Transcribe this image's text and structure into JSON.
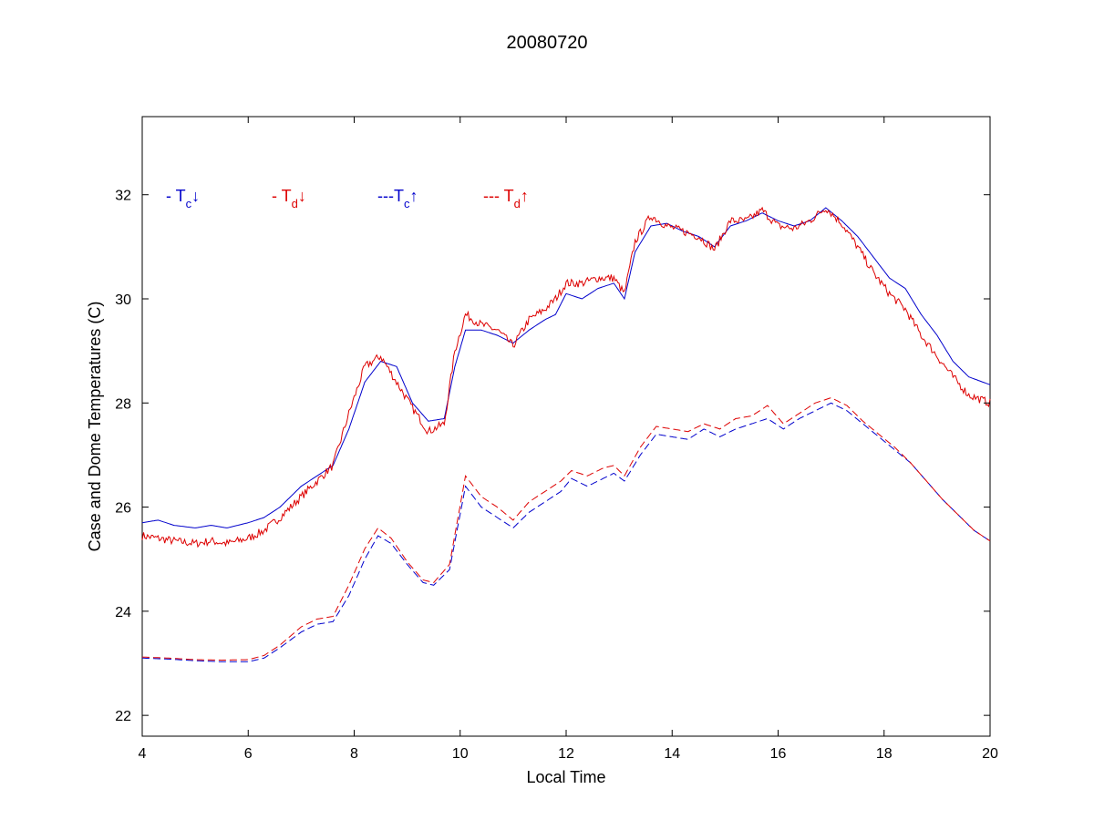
{
  "chart_data": {
    "type": "line",
    "title": "20080720",
    "xlabel": "Local Time",
    "ylabel": "Case and Dome Temperatures (C)",
    "xlim": [
      4,
      20
    ],
    "ylim": [
      21.6,
      33.5
    ],
    "xticks": [
      4,
      6,
      8,
      10,
      12,
      14,
      16,
      18,
      20
    ],
    "yticks": [
      22,
      24,
      26,
      28,
      30,
      32
    ],
    "grid": false,
    "legend": {
      "placement": "top-left",
      "entries": [
        {
          "prefix": "- T",
          "sub": "c",
          "arrow": "↓",
          "color": "#0000cc"
        },
        {
          "prefix": "- T",
          "sub": "d",
          "arrow": "↓",
          "color": "#dd0000"
        },
        {
          "prefix": "---T",
          "sub": "c",
          "arrow": "↑",
          "color": "#0000cc"
        },
        {
          "prefix": "--- T",
          "sub": "d",
          "arrow": "↑",
          "color": "#dd0000"
        }
      ]
    },
    "series": [
      {
        "color": "#0000cc",
        "style": "solid",
        "noise": 0,
        "points": [
          [
            4,
            25.7
          ],
          [
            4.3,
            25.75
          ],
          [
            4.6,
            25.65
          ],
          [
            5,
            25.6
          ],
          [
            5.3,
            25.65
          ],
          [
            5.6,
            25.6
          ],
          [
            6,
            25.7
          ],
          [
            6.3,
            25.8
          ],
          [
            6.6,
            26.0
          ],
          [
            7.0,
            26.4
          ],
          [
            7.3,
            26.6
          ],
          [
            7.6,
            26.8
          ],
          [
            7.9,
            27.5
          ],
          [
            8.2,
            28.4
          ],
          [
            8.5,
            28.8
          ],
          [
            8.8,
            28.7
          ],
          [
            9.1,
            28.0
          ],
          [
            9.4,
            27.65
          ],
          [
            9.7,
            27.7
          ],
          [
            9.9,
            28.7
          ],
          [
            10.1,
            29.4
          ],
          [
            10.4,
            29.4
          ],
          [
            10.7,
            29.3
          ],
          [
            11.0,
            29.15
          ],
          [
            11.3,
            29.4
          ],
          [
            11.6,
            29.6
          ],
          [
            11.8,
            29.7
          ],
          [
            12.0,
            30.1
          ],
          [
            12.3,
            30.0
          ],
          [
            12.6,
            30.2
          ],
          [
            12.9,
            30.3
          ],
          [
            13.1,
            30.0
          ],
          [
            13.3,
            30.9
          ],
          [
            13.6,
            31.4
          ],
          [
            13.9,
            31.45
          ],
          [
            14.2,
            31.3
          ],
          [
            14.5,
            31.2
          ],
          [
            14.8,
            31.0
          ],
          [
            15.1,
            31.4
          ],
          [
            15.4,
            31.5
          ],
          [
            15.7,
            31.65
          ],
          [
            16.0,
            31.5
          ],
          [
            16.3,
            31.4
          ],
          [
            16.6,
            31.5
          ],
          [
            16.9,
            31.75
          ],
          [
            17.2,
            31.5
          ],
          [
            17.5,
            31.2
          ],
          [
            17.8,
            30.8
          ],
          [
            18.1,
            30.4
          ],
          [
            18.4,
            30.2
          ],
          [
            18.7,
            29.7
          ],
          [
            19.0,
            29.3
          ],
          [
            19.3,
            28.8
          ],
          [
            19.6,
            28.5
          ],
          [
            20.0,
            28.35
          ]
        ]
      },
      {
        "color": "#dd0000",
        "style": "solid",
        "noise": 0.08,
        "points": [
          [
            4,
            25.45
          ],
          [
            4.3,
            25.4
          ],
          [
            4.6,
            25.35
          ],
          [
            5,
            25.3
          ],
          [
            5.3,
            25.35
          ],
          [
            5.6,
            25.3
          ],
          [
            6,
            25.4
          ],
          [
            6.3,
            25.55
          ],
          [
            6.6,
            25.8
          ],
          [
            7.0,
            26.2
          ],
          [
            7.3,
            26.5
          ],
          [
            7.6,
            26.8
          ],
          [
            7.9,
            27.8
          ],
          [
            8.2,
            28.7
          ],
          [
            8.5,
            28.9
          ],
          [
            8.8,
            28.4
          ],
          [
            9.1,
            27.9
          ],
          [
            9.4,
            27.45
          ],
          [
            9.7,
            27.6
          ],
          [
            9.9,
            29.0
          ],
          [
            10.1,
            29.7
          ],
          [
            10.4,
            29.5
          ],
          [
            10.7,
            29.4
          ],
          [
            11.0,
            29.1
          ],
          [
            11.3,
            29.6
          ],
          [
            11.6,
            29.8
          ],
          [
            11.8,
            30.0
          ],
          [
            12.0,
            30.3
          ],
          [
            12.3,
            30.3
          ],
          [
            12.6,
            30.4
          ],
          [
            12.9,
            30.4
          ],
          [
            13.1,
            30.1
          ],
          [
            13.3,
            31.1
          ],
          [
            13.6,
            31.6
          ],
          [
            13.9,
            31.4
          ],
          [
            14.2,
            31.3
          ],
          [
            14.5,
            31.2
          ],
          [
            14.8,
            30.95
          ],
          [
            15.1,
            31.5
          ],
          [
            15.4,
            31.5
          ],
          [
            15.7,
            31.7
          ],
          [
            16.0,
            31.4
          ],
          [
            16.3,
            31.35
          ],
          [
            16.6,
            31.5
          ],
          [
            16.9,
            31.75
          ],
          [
            17.2,
            31.45
          ],
          [
            17.5,
            31.0
          ],
          [
            17.8,
            30.5
          ],
          [
            18.1,
            30.1
          ],
          [
            18.4,
            29.8
          ],
          [
            18.7,
            29.3
          ],
          [
            19.0,
            28.9
          ],
          [
            19.3,
            28.5
          ],
          [
            19.6,
            28.15
          ],
          [
            20.0,
            28.0
          ]
        ]
      },
      {
        "color": "#0000cc",
        "style": "dashed",
        "noise": 0,
        "points": [
          [
            4,
            23.1
          ],
          [
            4.5,
            23.08
          ],
          [
            5,
            23.05
          ],
          [
            5.5,
            23.03
          ],
          [
            6,
            23.03
          ],
          [
            6.3,
            23.1
          ],
          [
            6.6,
            23.3
          ],
          [
            7.0,
            23.6
          ],
          [
            7.3,
            23.75
          ],
          [
            7.6,
            23.8
          ],
          [
            7.9,
            24.3
          ],
          [
            8.2,
            25.0
          ],
          [
            8.45,
            25.45
          ],
          [
            8.7,
            25.3
          ],
          [
            9.0,
            24.9
          ],
          [
            9.3,
            24.55
          ],
          [
            9.5,
            24.5
          ],
          [
            9.8,
            24.8
          ],
          [
            10.1,
            26.4
          ],
          [
            10.4,
            26.0
          ],
          [
            10.7,
            25.8
          ],
          [
            11.0,
            25.6
          ],
          [
            11.3,
            25.9
          ],
          [
            11.6,
            26.1
          ],
          [
            11.9,
            26.3
          ],
          [
            12.1,
            26.55
          ],
          [
            12.4,
            26.4
          ],
          [
            12.7,
            26.55
          ],
          [
            12.9,
            26.65
          ],
          [
            13.1,
            26.5
          ],
          [
            13.4,
            27.0
          ],
          [
            13.7,
            27.4
          ],
          [
            14.0,
            27.35
          ],
          [
            14.3,
            27.3
          ],
          [
            14.6,
            27.5
          ],
          [
            14.9,
            27.35
          ],
          [
            15.2,
            27.5
          ],
          [
            15.5,
            27.6
          ],
          [
            15.8,
            27.7
          ],
          [
            16.1,
            27.5
          ],
          [
            16.4,
            27.7
          ],
          [
            16.7,
            27.85
          ],
          [
            17.0,
            28.0
          ],
          [
            17.3,
            27.85
          ],
          [
            17.6,
            27.6
          ],
          [
            17.9,
            27.35
          ],
          [
            18.2,
            27.1
          ],
          [
            18.5,
            26.85
          ],
          [
            18.8,
            26.5
          ],
          [
            19.1,
            26.15
          ],
          [
            19.4,
            25.85
          ],
          [
            19.7,
            25.55
          ],
          [
            20.0,
            25.35
          ]
        ]
      },
      {
        "color": "#dd0000",
        "style": "dashed",
        "noise": 0,
        "points": [
          [
            4,
            23.12
          ],
          [
            4.5,
            23.1
          ],
          [
            5,
            23.07
          ],
          [
            5.5,
            23.06
          ],
          [
            6,
            23.07
          ],
          [
            6.3,
            23.15
          ],
          [
            6.6,
            23.35
          ],
          [
            7.0,
            23.7
          ],
          [
            7.3,
            23.85
          ],
          [
            7.6,
            23.9
          ],
          [
            7.9,
            24.5
          ],
          [
            8.2,
            25.2
          ],
          [
            8.45,
            25.6
          ],
          [
            8.7,
            25.4
          ],
          [
            9.0,
            24.95
          ],
          [
            9.3,
            24.6
          ],
          [
            9.5,
            24.55
          ],
          [
            9.8,
            24.9
          ],
          [
            10.1,
            26.6
          ],
          [
            10.4,
            26.2
          ],
          [
            10.7,
            26.0
          ],
          [
            11.0,
            25.75
          ],
          [
            11.3,
            26.1
          ],
          [
            11.6,
            26.3
          ],
          [
            11.9,
            26.5
          ],
          [
            12.1,
            26.7
          ],
          [
            12.4,
            26.6
          ],
          [
            12.7,
            26.75
          ],
          [
            12.9,
            26.8
          ],
          [
            13.1,
            26.6
          ],
          [
            13.4,
            27.15
          ],
          [
            13.7,
            27.55
          ],
          [
            14.0,
            27.5
          ],
          [
            14.3,
            27.45
          ],
          [
            14.6,
            27.6
          ],
          [
            14.9,
            27.5
          ],
          [
            15.2,
            27.7
          ],
          [
            15.5,
            27.75
          ],
          [
            15.8,
            27.95
          ],
          [
            16.1,
            27.6
          ],
          [
            16.4,
            27.8
          ],
          [
            16.7,
            28.0
          ],
          [
            17.0,
            28.1
          ],
          [
            17.3,
            27.95
          ],
          [
            17.6,
            27.65
          ],
          [
            17.9,
            27.4
          ],
          [
            18.2,
            27.15
          ],
          [
            18.5,
            26.85
          ],
          [
            18.8,
            26.5
          ],
          [
            19.1,
            26.15
          ],
          [
            19.4,
            25.85
          ],
          [
            19.7,
            25.55
          ],
          [
            20.0,
            25.35
          ]
        ]
      }
    ]
  }
}
